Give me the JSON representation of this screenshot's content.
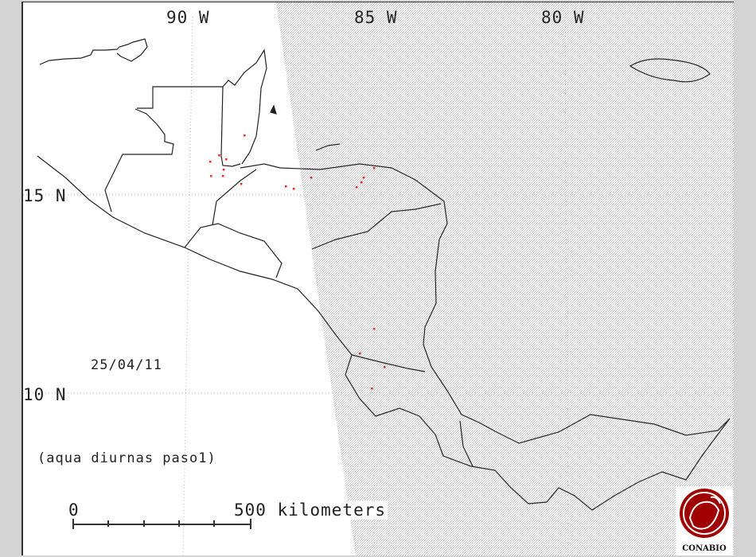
{
  "map": {
    "longitude_labels": [
      "90 W",
      "85 W",
      "80 W"
    ],
    "latitude_labels": [
      "15 N",
      "10 N"
    ],
    "date": "25/04/11",
    "subtitle": "(aqua diurnas paso1)",
    "scale_bar": {
      "start_label": "0",
      "end_label": "500 kilometers"
    },
    "logo": "CONABIO",
    "colors": {
      "hotspot": "#ff2020",
      "coastline": "#222222",
      "swath_stipple": "#c8c8c8",
      "logo": "#a00000",
      "frame": "#d4d4d4"
    },
    "hotspots": [
      {
        "lon": -88.61,
        "lat": 16.48
      },
      {
        "lon": -89.29,
        "lat": 15.98
      },
      {
        "lon": -89.53,
        "lat": 15.82
      },
      {
        "lon": -89.1,
        "lat": 15.88
      },
      {
        "lon": -89.17,
        "lat": 15.62
      },
      {
        "lon": -89.19,
        "lat": 15.46
      },
      {
        "lon": -89.51,
        "lat": 15.46
      },
      {
        "lon": -88.7,
        "lat": 15.26
      },
      {
        "lon": -87.5,
        "lat": 15.2
      },
      {
        "lon": -87.29,
        "lat": 15.14
      },
      {
        "lon": -86.82,
        "lat": 15.42
      },
      {
        "lon": -85.41,
        "lat": 15.42
      },
      {
        "lon": -85.47,
        "lat": 15.3
      },
      {
        "lon": -85.6,
        "lat": 15.18
      },
      {
        "lon": -85.13,
        "lat": 15.66
      },
      {
        "lon": -85.13,
        "lat": 11.62
      },
      {
        "lon": -85.51,
        "lat": 11.0
      },
      {
        "lon": -84.85,
        "lat": 10.66
      },
      {
        "lon": -85.19,
        "lat": 10.12
      }
    ]
  }
}
